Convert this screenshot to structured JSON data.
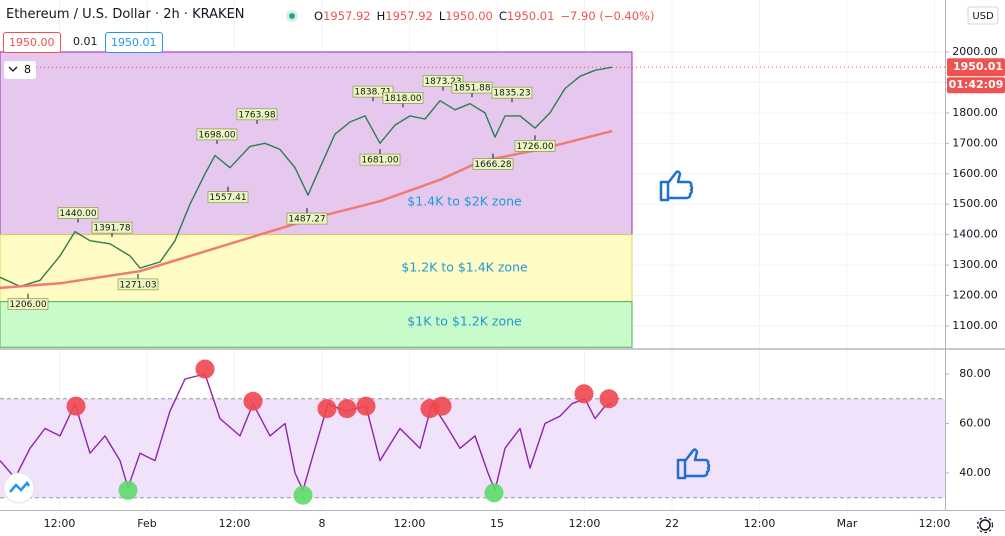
{
  "header": {
    "symbol": "Ethereum / U.S. Dollar · 2h · KRAKEN",
    "ohlc": [
      {
        "key": "O",
        "value": "1957.92"
      },
      {
        "key": "H",
        "value": "1957.92"
      },
      {
        "key": "L",
        "value": "1950.00"
      },
      {
        "key": "C",
        "value": "1950.01"
      }
    ],
    "change": "−7.90 (−0.40%)",
    "bid": "1950.00",
    "spread": "0.01",
    "ask": "1950.01",
    "indicators": "8"
  },
  "chart_data": [
    {
      "type": "line",
      "currency": "USD",
      "xlim": [
        -5.88,
        31.92
      ],
      "ylim": [
        1027.6,
        2170.8
      ],
      "xticks": [
        {
          "value": -3.5,
          "label": "12:00"
        },
        {
          "value": 0,
          "label": "Feb"
        },
        {
          "value": 3.5,
          "label": "12:00"
        },
        {
          "value": 7,
          "label": "8"
        },
        {
          "value": 10.5,
          "label": "12:00"
        },
        {
          "value": 14,
          "label": "15"
        },
        {
          "value": 17.5,
          "label": "12:00"
        },
        {
          "value": 21,
          "label": "22"
        },
        {
          "value": 24.5,
          "label": "12:00"
        },
        {
          "value": 28,
          "label": "Mar"
        },
        {
          "value": 31.5,
          "label": "12:00"
        }
      ],
      "yticks": [
        {
          "value": 1100,
          "label": "1100.00"
        },
        {
          "value": 1200,
          "label": "1200.00"
        },
        {
          "value": 1300,
          "label": "1300.00"
        },
        {
          "value": 1400,
          "label": "1400.00"
        },
        {
          "value": 1500,
          "label": "1500.00"
        },
        {
          "value": 1600,
          "label": "1600.00"
        },
        {
          "value": 1700,
          "label": "1700.00"
        },
        {
          "value": 1800,
          "label": "1800.00"
        },
        {
          "value": 1900,
          "label": "1900.00"
        },
        {
          "value": 2000,
          "label": "2000.00"
        }
      ],
      "grid": true,
      "zones": [
        {
          "label": "$1.4K to $2K zone",
          "range": [
            1400,
            2000
          ],
          "x": [
            -5.88,
            19.4
          ],
          "color": "#e6c8ef",
          "border": "#9c27b0"
        },
        {
          "label": "$1.2K to $1.4K zone",
          "range": [
            1180,
            1400
          ],
          "x": [
            -5.88,
            19.4
          ],
          "color": "#fffbc4",
          "border": "#e6d65a"
        },
        {
          "label": "$1K to $1.2K zone",
          "range": [
            1030,
            1180
          ],
          "x": [
            -5.88,
            19.4
          ],
          "color": "#c9fac9",
          "border": "#4caf50"
        }
      ],
      "zone_label_color": "#1e9ad6",
      "series": [
        {
          "color": "#2e7d4f",
          "x": [
            -5.88,
            -5.08,
            -4.28,
            -3.48,
            -2.88,
            -2.28,
            -1.48,
            -0.68,
            -0.28,
            0.52,
            1.12,
            1.72,
            2.32,
            2.72,
            3.32,
            4.12,
            4.72,
            5.32,
            5.92,
            6.44,
            6.92,
            7.52,
            8.12,
            8.72,
            9.32,
            9.92,
            10.52,
            11.12,
            11.72,
            12.32,
            12.92,
            13.52,
            13.92,
            14.32,
            14.92,
            15.52,
            16.12,
            16.72,
            17.32,
            17.92,
            18.6
          ],
          "values": [
            1260,
            1230,
            1250,
            1330,
            1410,
            1380,
            1370,
            1330,
            1290,
            1310,
            1380,
            1500,
            1600,
            1660,
            1620,
            1690,
            1700,
            1680,
            1620,
            1530,
            1620,
            1730,
            1770,
            1790,
            1700,
            1760,
            1790,
            1780,
            1840,
            1810,
            1830,
            1800,
            1720,
            1790,
            1790,
            1750,
            1800,
            1880,
            1920,
            1940,
            1950
          ]
        },
        {
          "color": "#ef7b73",
          "x": [
            -5.88,
            -3.48,
            -0.28,
            2.12,
            4.52,
            6.92,
            9.32,
            11.72,
            13.32,
            15.72,
            18.6
          ],
          "values": [
            1225,
            1240,
            1280,
            1340,
            1400,
            1460,
            1510,
            1580,
            1640,
            1680,
            1740
          ]
        }
      ],
      "price_labels": [
        {
          "x": -2.76,
          "value": 1440,
          "label": "1440.00",
          "side": "above"
        },
        {
          "x": -1.4,
          "value": 1391.78,
          "label": "1391.78",
          "side": "above"
        },
        {
          "x": -0.36,
          "value": 1271.03,
          "label": "1271.03",
          "side": "below"
        },
        {
          "x": -4.76,
          "value": 1206,
          "label": "1206.00",
          "side": "below"
        },
        {
          "x": 2.8,
          "value": 1698,
          "label": "1698.00",
          "side": "above"
        },
        {
          "x": 3.24,
          "value": 1557.41,
          "label": "1557.41",
          "side": "below"
        },
        {
          "x": 4.4,
          "value": 1763.98,
          "label": "1763.98",
          "side": "above"
        },
        {
          "x": 6.4,
          "value": 1487.27,
          "label": "1487.27",
          "side": "below"
        },
        {
          "x": 9.04,
          "value": 1838.71,
          "label": "1838.71",
          "side": "above"
        },
        {
          "x": 10.24,
          "value": 1818,
          "label": "1818.00",
          "side": "above"
        },
        {
          "x": 9.32,
          "value": 1681,
          "label": "1681.00",
          "side": "below"
        },
        {
          "x": 11.84,
          "value": 1873.23,
          "label": "1873.23",
          "side": "above"
        },
        {
          "x": 13.0,
          "value": 1851.88,
          "label": "1851.88",
          "side": "above"
        },
        {
          "x": 14.6,
          "value": 1835.23,
          "label": "1835.23",
          "side": "above"
        },
        {
          "x": 13.84,
          "value": 1666.28,
          "label": "1666.28",
          "side": "below"
        },
        {
          "x": 15.52,
          "value": 1726,
          "label": "1726.00",
          "side": "below"
        }
      ],
      "last_price": {
        "value": 1950.01,
        "countdown": "01:42:09",
        "color": "#ef5350"
      }
    },
    {
      "type": "line",
      "xlim": [
        -5.88,
        31.92
      ],
      "ylim": [
        25.05,
        89.7
      ],
      "yticks": [
        {
          "value": 40,
          "label": "40.00"
        },
        {
          "value": 60,
          "label": "60.00"
        },
        {
          "value": 80,
          "label": "80.00"
        }
      ],
      "band": [
        30,
        70
      ],
      "band_color": "#f1e2fb",
      "series": [
        {
          "color": "#8e24aa",
          "x": [
            -5.88,
            -5.28,
            -4.68,
            -4.08,
            -3.48,
            -2.88,
            -2.28,
            -1.68,
            -1.08,
            -0.76,
            -0.28,
            0.32,
            0.92,
            1.52,
            2.32,
            2.92,
            3.72,
            4.24,
            4.92,
            5.52,
            5.92,
            6.24,
            6.72,
            7.24,
            7.92,
            8.76,
            9.32,
            10.12,
            10.92,
            11.4,
            11.92,
            12.52,
            13.12,
            13.64,
            13.92,
            14.32,
            14.92,
            15.32,
            15.92,
            16.52,
            17.0,
            17.52,
            17.92,
            18.32,
            18.6
          ],
          "values": [
            45,
            38,
            50,
            58,
            55,
            68,
            48,
            55,
            45,
            34,
            48,
            45,
            65,
            78,
            80,
            62,
            55,
            68,
            55,
            60,
            40,
            33,
            50,
            68,
            65,
            67,
            45,
            58,
            50,
            68,
            60,
            50,
            55,
            40,
            33,
            50,
            58,
            42,
            60,
            63,
            68,
            70,
            62,
            67,
            68
          ]
        }
      ],
      "overbought": {
        "color": "#f0474f",
        "x": [
          -2.84,
          2.32,
          4.24,
          7.2,
          8.0,
          8.76,
          11.32,
          11.8,
          17.48,
          18.48
        ],
        "values": [
          67,
          82,
          69,
          66,
          66,
          67,
          66,
          67,
          72,
          70
        ]
      },
      "oversold": {
        "color": "#5ddc6a",
        "x": [
          -0.76,
          6.24,
          13.88
        ],
        "values": [
          33,
          31,
          32
        ]
      }
    }
  ]
}
